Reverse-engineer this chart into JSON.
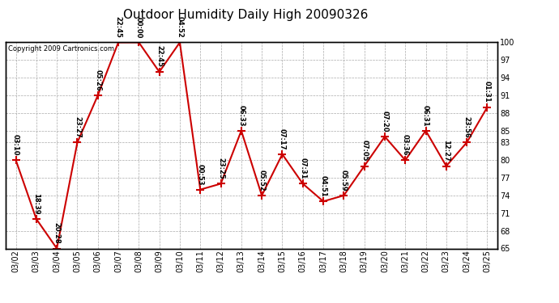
{
  "title": "Outdoor Humidity Daily High 20090326",
  "copyright": "Copyright 2009 Cartronics.com",
  "xlabels": [
    "03/02",
    "03/03",
    "03/04",
    "03/05",
    "03/06",
    "03/07",
    "03/08",
    "03/09",
    "03/10",
    "03/11",
    "03/12",
    "03/13",
    "03/14",
    "03/15",
    "03/16",
    "03/17",
    "03/18",
    "03/19",
    "03/20",
    "03/21",
    "03/22",
    "03/23",
    "03/24",
    "03/25"
  ],
  "yvalues": [
    80,
    70,
    65,
    83,
    91,
    100,
    100,
    95,
    100,
    75,
    76,
    85,
    74,
    81,
    76,
    73,
    74,
    79,
    84,
    80,
    85,
    79,
    83,
    89
  ],
  "point_labels": [
    "03:10",
    "18:39",
    "20:28",
    "23:27",
    "05:26",
    "22:45",
    "00:00",
    "22:45",
    "04:52",
    "00:53",
    "23:25",
    "06:33",
    "05:52",
    "07:17",
    "07:31",
    "04:51",
    "05:59",
    "07:05",
    "07:20",
    "03:36",
    "06:31",
    "12:27",
    "23:56",
    "01:31"
  ],
  "ylim": [
    65,
    100
  ],
  "yticks": [
    65,
    68,
    71,
    74,
    77,
    80,
    83,
    85,
    88,
    91,
    94,
    97,
    100
  ],
  "line_color": "#cc0000",
  "marker_color": "#cc0000",
  "bg_color": "#ffffff",
  "grid_color": "#aaaaaa",
  "title_fontsize": 11,
  "tick_fontsize": 7,
  "copyright_fontsize": 6
}
